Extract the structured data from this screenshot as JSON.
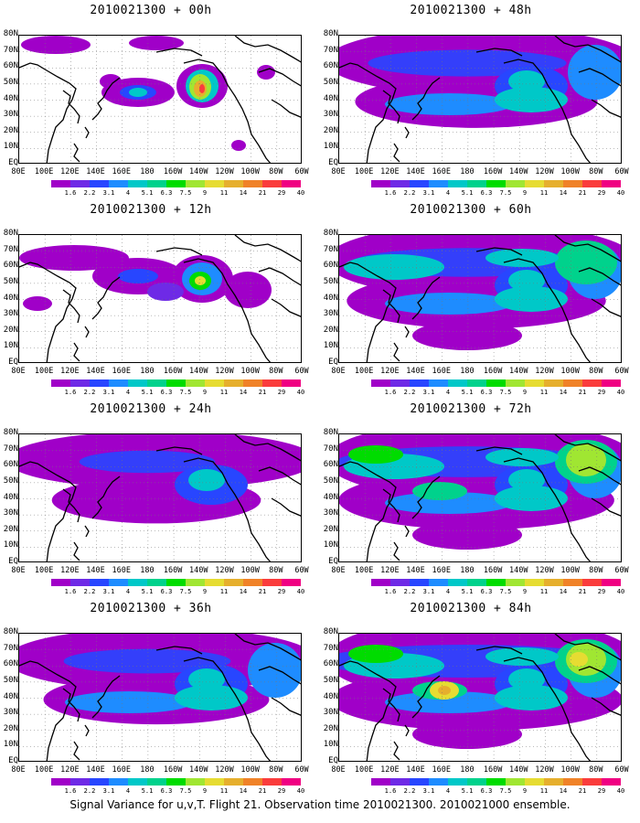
{
  "panels": [
    {
      "title": "2010021300 + 00h",
      "level": 0
    },
    {
      "title": "2010021300 + 48h",
      "level": 4
    },
    {
      "title": "2010021300 + 12h",
      "level": 1
    },
    {
      "title": "2010021300 + 60h",
      "level": 5
    },
    {
      "title": "2010021300 + 24h",
      "level": 2
    },
    {
      "title": "2010021300 + 72h",
      "level": 6
    },
    {
      "title": "2010021300 + 36h",
      "level": 3
    },
    {
      "title": "2010021300 + 84h",
      "level": 7
    }
  ],
  "lat_labels": [
    "80N",
    "70N",
    "60N",
    "50N",
    "40N",
    "30N",
    "20N",
    "10N",
    "EQ"
  ],
  "lon_labels": [
    "80E",
    "100E",
    "120E",
    "140E",
    "160E",
    "180",
    "160W",
    "140W",
    "120W",
    "100W",
    "80W",
    "60W"
  ],
  "colorbar": {
    "labels": [
      "1.6",
      "2.2",
      "3.1",
      "4",
      "5.1",
      "6.3",
      "7.5",
      "9",
      "11",
      "14",
      "21",
      "29",
      "40"
    ],
    "colors": [
      "#a000c8",
      "#6e2ae6",
      "#2846ff",
      "#1e8cff",
      "#00c8c8",
      "#00d28c",
      "#00dc00",
      "#a0e632",
      "#e6dc32",
      "#e6af2d",
      "#f08228",
      "#fa3c3c",
      "#f00082"
    ]
  },
  "caption": "Signal Variance for u,v,T. Flight 21. Observation time 2010021300. 2010021000 ensemble."
}
